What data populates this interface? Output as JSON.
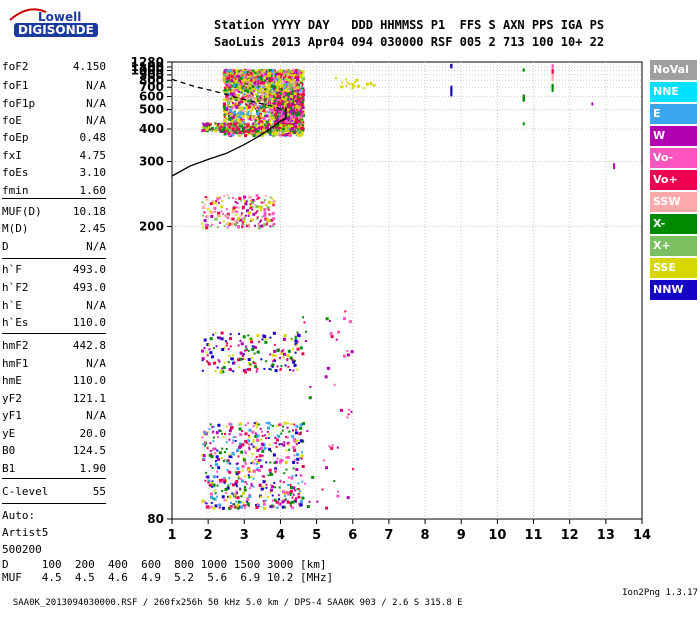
{
  "logo": {
    "top": "Lowell",
    "bottom": "DIGISONDE"
  },
  "header": {
    "line1": "Station YYYY DAY   DDD HHMMSS P1  FFS S AXN PPS IGA PS",
    "line2": "SaoLuis 2013 Apr04 094 030000 RSF 005 2 713 100 10+ 22"
  },
  "params": {
    "group1": [
      {
        "label": "foF2",
        "value": "4.150"
      },
      {
        "label": "foF1",
        "value": "N/A"
      },
      {
        "label": "foF1p",
        "value": "N/A"
      },
      {
        "label": "foE",
        "value": "N/A"
      },
      {
        "label": "foEp",
        "value": "0.48"
      },
      {
        "label": "fxI",
        "value": "4.75"
      },
      {
        "label": "foEs",
        "value": "3.10"
      },
      {
        "label": "fmin",
        "value": "1.60"
      }
    ],
    "group2": [
      {
        "label": "MUF(D)",
        "value": "10.18"
      },
      {
        "label": "M(D)",
        "value": "2.45"
      },
      {
        "label": "D",
        "value": "N/A"
      }
    ],
    "group3": [
      {
        "label": "h`F",
        "value": "493.0"
      },
      {
        "label": "h`F2",
        "value": "493.0"
      },
      {
        "label": "h`E",
        "value": "N/A"
      },
      {
        "label": "h`Es",
        "value": "110.0"
      }
    ],
    "group4": [
      {
        "label": "hmF2",
        "value": "442.8"
      },
      {
        "label": "hmF1",
        "value": "N/A"
      },
      {
        "label": "hmE",
        "value": "110.0"
      },
      {
        "label": "yF2",
        "value": "121.1"
      },
      {
        "label": "yF1",
        "value": "N/A"
      },
      {
        "label": "yE",
        "value": "20.0"
      },
      {
        "label": "B0",
        "value": "124.5"
      },
      {
        "label": "B1",
        "value": "1.90"
      }
    ],
    "clevel": {
      "label": "C-level",
      "value": "55"
    },
    "auto": [
      "Auto:",
      "Artist5",
      "500200"
    ]
  },
  "legend": [
    {
      "label": "NoVal",
      "color": "#a0a0a0"
    },
    {
      "label": "NNE",
      "color": "#00e0ff"
    },
    {
      "label": "E",
      "color": "#3aa6f0"
    },
    {
      "label": "W",
      "color": "#b000b0"
    },
    {
      "label": "Vo-",
      "color": "#ff55c0"
    },
    {
      "label": "Vo+",
      "color": "#f00050"
    },
    {
      "label": "SSW",
      "color": "#ffaaaa"
    },
    {
      "label": "X-",
      "color": "#008a00"
    },
    {
      "label": "X+",
      "color": "#7ac060"
    },
    {
      "label": "SSE",
      "color": "#d8d800"
    },
    {
      "label": "NNW",
      "color": "#1400c8"
    }
  ],
  "bottom_table": {
    "line1": "D     100  200  400  600  800 1000 1500 3000 [km]",
    "line2": "MUF   4.5  4.5  4.6  4.9  5.2  5.6  6.9 10.2 [MHz]"
  },
  "footer": {
    "left": "SAA0K_2013094030000.RSF / 260fx256h 50 kHz 5.0 km / DPS-4 SAA0K 903 / 2.6 S 315.8 E",
    "right": "Ion2Png 1.3.17"
  },
  "chart_data": {
    "type": "scatter",
    "title": "",
    "xlabel": "",
    "ylabel": "",
    "xlim": [
      1,
      14
    ],
    "ylim": [
      80,
      1280
    ],
    "x_ticks": [
      1,
      2,
      3,
      4,
      5,
      6,
      7,
      8,
      9,
      10,
      11,
      12,
      13,
      14
    ],
    "y_ticks": [
      80,
      200,
      300,
      400,
      500,
      600,
      700,
      800,
      900,
      1000,
      1100,
      1280
    ],
    "grid": true,
    "height_scale": "reciprocal",
    "trace_solid": [
      [
        1.0,
        270
      ],
      [
        1.5,
        290
      ],
      [
        2.0,
        305
      ],
      [
        2.5,
        320
      ],
      [
        3.0,
        345
      ],
      [
        3.5,
        380
      ],
      [
        3.8,
        410
      ],
      [
        4.0,
        435
      ],
      [
        4.15,
        450
      ],
      [
        4.15,
        520
      ]
    ],
    "trace_dashed": [
      [
        1.0,
        815
      ],
      [
        1.3,
        760
      ],
      [
        1.7,
        700
      ],
      [
        2.0,
        670
      ],
      [
        2.4,
        630
      ],
      [
        2.8,
        590
      ],
      [
        3.2,
        560
      ],
      [
        3.5,
        540
      ],
      [
        3.8,
        520
      ],
      [
        4.0,
        505
      ]
    ]
  }
}
